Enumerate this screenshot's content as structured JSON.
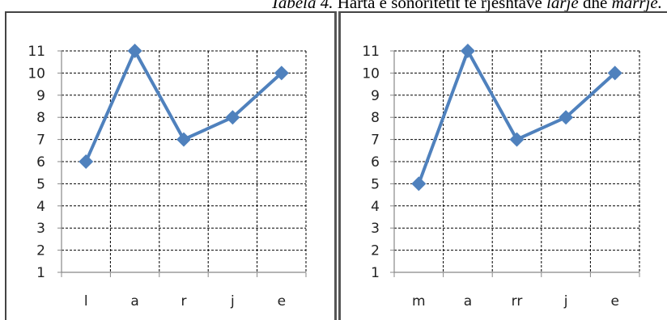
{
  "caption": {
    "part1": "Tabela 4.",
    "part2": " Harta e sonoritetit të rjeshtave ",
    "part3": "larje",
    "part4": " dhe ",
    "part5": "marrje."
  },
  "colors": {
    "series": "#4f81bd",
    "grid": "#000000",
    "axis": "#888888"
  },
  "chart_data": [
    {
      "type": "line",
      "categories": [
        "l",
        "a",
        "r",
        "j",
        "e"
      ],
      "series": [
        {
          "values": [
            6,
            11,
            7,
            8,
            10
          ]
        }
      ],
      "yticks": [
        1,
        2,
        3,
        4,
        5,
        6,
        7,
        8,
        9,
        10,
        11
      ],
      "ylim": [
        1,
        11
      ],
      "grid": true,
      "marker": "diamond"
    },
    {
      "type": "line",
      "categories": [
        "m",
        "a",
        "rr",
        "j",
        "e"
      ],
      "series": [
        {
          "values": [
            5,
            11,
            7,
            8,
            10
          ]
        }
      ],
      "yticks": [
        1,
        2,
        3,
        4,
        5,
        6,
        7,
        8,
        9,
        10,
        11
      ],
      "ylim": [
        1,
        11
      ],
      "grid": true,
      "marker": "diamond"
    }
  ]
}
